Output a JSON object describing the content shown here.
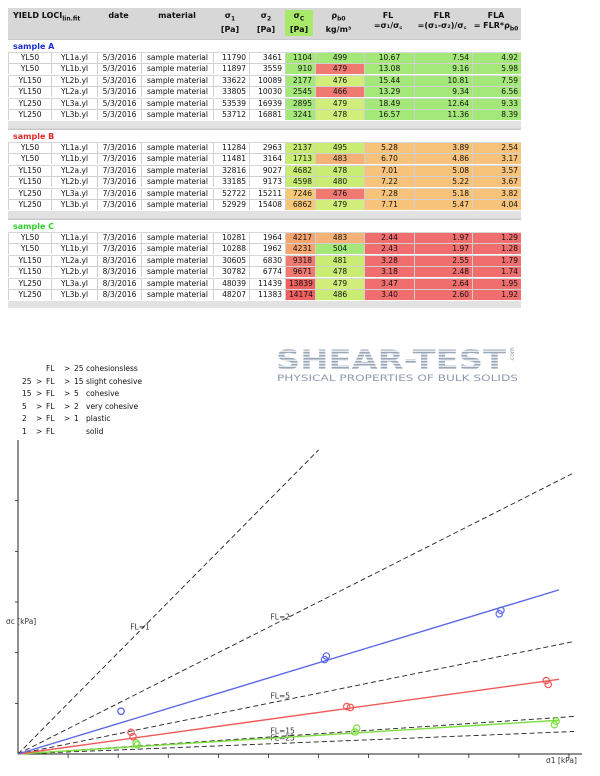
{
  "table": {
    "headers": {
      "yield": "YIELD LOCI",
      "yield_sub": "lin.fit",
      "date": "date",
      "material": "material",
      "s1": "σ",
      "s1_sub": "1",
      "s1_unit": "[Pa]",
      "s2": "σ",
      "s2_sub": "2",
      "s2_unit": "[Pa]",
      "sc": "σ",
      "sc_sub": "C",
      "sc_unit": "[Pa]",
      "rho": "ρ",
      "rho_sub": "b0",
      "rho_unit": "kg/m³",
      "fl": "FL",
      "fl_formula": "=σ₁/σ꜀",
      "flr": "FLR",
      "flr_formula": "=(σ₁-σ₂)/σ꜀",
      "fla": "FLA",
      "fla_formula": "= FLR*ρ",
      "fla_formula_sub": "b0"
    },
    "sections": [
      {
        "title": "sample A",
        "title_color": "#1a2fd0",
        "groups": [
          [
            {
              "name": "YL50",
              "file": "YL1a.yl",
              "date": "5/3/2016",
              "material": "sample material",
              "s1": "11790",
              "s2": "3461",
              "sc": "1104",
              "rho": "499",
              "fl": "10.67",
              "flr": "7.54",
              "fla": "4.92",
              "sc_color": "#a5e87a",
              "rho_color": "#a5e87a",
              "fl_color": "#a5e87a",
              "flr_color": "#a5e87a",
              "fla_color": "#a5e87a"
            },
            {
              "name": "YL50",
              "file": "YL1b.yl",
              "date": "5/3/2016",
              "material": "sample material",
              "s1": "11897",
              "s2": "3559",
              "sc": "910",
              "rho": "479",
              "fl": "13.08",
              "flr": "9.16",
              "fla": "5.98",
              "sc_color": "#a5e87a",
              "rho_color": "#f07a72",
              "fl_color": "#a5e87a",
              "flr_color": "#a5e87a",
              "fla_color": "#a5e87a"
            }
          ],
          [
            {
              "name": "YL150",
              "file": "YL2b.yl",
              "date": "5/3/2016",
              "material": "sample material",
              "s1": "33622",
              "s2": "10089",
              "sc": "2177",
              "rho": "476",
              "fl": "15.44",
              "flr": "10.81",
              "fla": "7.59",
              "sc_color": "#a5e87a",
              "rho_color": "#d2ee7a",
              "fl_color": "#a5e87a",
              "flr_color": "#a5e87a",
              "fla_color": "#a5e87a"
            },
            {
              "name": "YL150",
              "file": "YL2a.yl",
              "date": "5/3/2016",
              "material": "sample material",
              "s1": "33805",
              "s2": "10030",
              "sc": "2545",
              "rho": "466",
              "fl": "13.29",
              "flr": "9.34",
              "fla": "6.56",
              "sc_color": "#a5e87a",
              "rho_color": "#f07a72",
              "fl_color": "#a5e87a",
              "flr_color": "#a5e87a",
              "fla_color": "#a5e87a"
            }
          ],
          [
            {
              "name": "YL250",
              "file": "YL3a.yl",
              "date": "5/3/2016",
              "material": "sample material",
              "s1": "53539",
              "s2": "16939",
              "sc": "2895",
              "rho": "479",
              "fl": "18.49",
              "flr": "12.64",
              "fla": "9.33",
              "sc_color": "#a5e87a",
              "rho_color": "#d2ee7a",
              "fl_color": "#a5e87a",
              "flr_color": "#a5e87a",
              "fla_color": "#a5e87a"
            },
            {
              "name": "YL250",
              "file": "YL3b.yl",
              "date": "5/3/2016",
              "material": "sample material",
              "s1": "53712",
              "s2": "16881",
              "sc": "3241",
              "rho": "478",
              "fl": "16.57",
              "flr": "11.36",
              "fla": "8.39",
              "sc_color": "#a5e87a",
              "rho_color": "#d2ee7a",
              "fl_color": "#a5e87a",
              "flr_color": "#a5e87a",
              "fla_color": "#a5e87a"
            }
          ]
        ]
      },
      {
        "title": "sample B",
        "title_color": "#e02828",
        "groups": [
          [
            {
              "name": "YL50",
              "file": "YL1a.yl",
              "date": "7/3/2016",
              "material": "sample material",
              "s1": "11284",
              "s2": "2963",
              "sc": "2137",
              "rho": "495",
              "fl": "5.28",
              "flr": "3.89",
              "fla": "2.54",
              "sc_color": "#c9ec72",
              "rho_color": "#c9ec72",
              "fl_color": "#f7c27a",
              "flr_color": "#f7c27a",
              "fla_color": "#f7c27a"
            },
            {
              "name": "YL50",
              "file": "YL1b.yl",
              "date": "7/3/2016",
              "material": "sample material",
              "s1": "11481",
              "s2": "3164",
              "sc": "1713",
              "rho": "483",
              "fl": "6.70",
              "flr": "4.86",
              "fla": "3.17",
              "sc_color": "#c9ec72",
              "rho_color": "#f4b276",
              "fl_color": "#f7c27a",
              "flr_color": "#f7c27a",
              "fla_color": "#f7c27a"
            }
          ],
          [
            {
              "name": "YL150",
              "file": "YL2a.yl",
              "date": "7/3/2016",
              "material": "sample material",
              "s1": "32816",
              "s2": "9027",
              "sc": "4682",
              "rho": "478",
              "fl": "7.01",
              "flr": "5.08",
              "fla": "3.57",
              "sc_color": "#c9ec72",
              "rho_color": "#c9ec72",
              "fl_color": "#f7c27a",
              "flr_color": "#f7c27a",
              "fla_color": "#f7c27a"
            },
            {
              "name": "YL150",
              "file": "YL2b.yl",
              "date": "7/3/2016",
              "material": "sample material",
              "s1": "33185",
              "s2": "9173",
              "sc": "4598",
              "rho": "480",
              "fl": "7.22",
              "flr": "5.22",
              "fla": "3.67",
              "sc_color": "#c9ec72",
              "rho_color": "#c9ec72",
              "fl_color": "#f7c27a",
              "flr_color": "#f7c27a",
              "fla_color": "#f7c27a"
            }
          ],
          [
            {
              "name": "YL250",
              "file": "YL3a.yl",
              "date": "7/3/2016",
              "material": "sample material",
              "s1": "52722",
              "s2": "15211",
              "sc": "7246",
              "rho": "476",
              "fl": "7.28",
              "flr": "5.18",
              "fla": "3.82",
              "sc_color": "#f6c878",
              "rho_color": "#f07a72",
              "fl_color": "#f7c27a",
              "flr_color": "#f7c27a",
              "fla_color": "#f7c27a"
            },
            {
              "name": "YL250",
              "file": "YL3b.yl",
              "date": "7/3/2016",
              "material": "sample material",
              "s1": "52929",
              "s2": "15408",
              "sc": "6862",
              "rho": "479",
              "fl": "7.71",
              "flr": "5.47",
              "fla": "4.04",
              "sc_color": "#f6c878",
              "rho_color": "#d2ee7a",
              "fl_color": "#f7c27a",
              "flr_color": "#f7c27a",
              "fla_color": "#f7c27a"
            }
          ]
        ]
      },
      {
        "title": "sample C",
        "title_color": "#2bd02b",
        "groups": [
          [
            {
              "name": "YL50",
              "file": "YL1a.yl",
              "date": "7/3/2016",
              "material": "sample material",
              "s1": "10281",
              "s2": "1964",
              "sc": "4217",
              "rho": "483",
              "fl": "2.44",
              "flr": "1.97",
              "fla": "1.29",
              "sc_color": "#f6a470",
              "rho_color": "#f4b276",
              "fl_color": "#f06e6e",
              "flr_color": "#f06e6e",
              "fla_color": "#f06e6e"
            },
            {
              "name": "YL50",
              "file": "YL1b.yl",
              "date": "7/3/2016",
              "material": "sample material",
              "s1": "10288",
              "s2": "1962",
              "sc": "4231",
              "rho": "504",
              "fl": "2.43",
              "flr": "1.97",
              "fla": "1.28",
              "sc_color": "#f6a470",
              "rho_color": "#a5e87a",
              "fl_color": "#f06e6e",
              "flr_color": "#f06e6e",
              "fla_color": "#f06e6e"
            }
          ],
          [
            {
              "name": "YL150",
              "file": "YL2a.yl",
              "date": "8/3/2016",
              "material": "sample material",
              "s1": "30605",
              "s2": "6830",
              "sc": "9318",
              "rho": "481",
              "fl": "3.28",
              "flr": "2.55",
              "fla": "1.79",
              "sc_color": "#f07a72",
              "rho_color": "#c9ec72",
              "fl_color": "#f06e6e",
              "flr_color": "#f06e6e",
              "fla_color": "#f06e6e"
            },
            {
              "name": "YL150",
              "file": "YL2b.yl",
              "date": "8/3/2016",
              "material": "sample material",
              "s1": "30782",
              "s2": "6774",
              "sc": "9671",
              "rho": "478",
              "fl": "3.18",
              "flr": "2.48",
              "fla": "1.74",
              "sc_color": "#f07a72",
              "rho_color": "#c9ec72",
              "fl_color": "#f06e6e",
              "flr_color": "#f06e6e",
              "fla_color": "#f06e6e"
            }
          ],
          [
            {
              "name": "YL250",
              "file": "YL3a.yl",
              "date": "8/3/2016",
              "material": "sample material",
              "s1": "48039",
              "s2": "11439",
              "sc": "13839",
              "rho": "479",
              "fl": "3.47",
              "flr": "2.64",
              "fla": "1.95",
              "sc_color": "#f06060",
              "rho_color": "#d2ee7a",
              "fl_color": "#f06e6e",
              "flr_color": "#f06e6e",
              "fla_color": "#f06e6e"
            },
            {
              "name": "YL250",
              "file": "YL3b.yl",
              "date": "8/3/2016",
              "material": "sample material",
              "s1": "48207",
              "s2": "11383",
              "sc": "14174",
              "rho": "486",
              "fl": "3.40",
              "flr": "2.60",
              "fla": "1.92",
              "sc_color": "#f06060",
              "rho_color": "#c9ec72",
              "fl_color": "#f06e6e",
              "flr_color": "#f06e6e",
              "fla_color": "#f06e6e"
            }
          ]
        ]
      }
    ]
  },
  "legend": [
    {
      "lo": "",
      "lo_op": "",
      "fl": "FL",
      "hi_op": ">",
      "hi": "25",
      "label": "cohesionsless"
    },
    {
      "lo": "25",
      "lo_op": ">",
      "fl": "FL",
      "hi_op": ">",
      "hi": "15",
      "label": "slight cohesive"
    },
    {
      "lo": "15",
      "lo_op": ">",
      "fl": "FL",
      "hi_op": ">",
      "hi": "5",
      "label": "cohesive"
    },
    {
      "lo": "5",
      "lo_op": ">",
      "fl": "FL",
      "hi_op": ">",
      "hi": "2",
      "label": "very cohesive"
    },
    {
      "lo": "2",
      "lo_op": ">",
      "fl": "FL",
      "hi_op": ">",
      "hi": "1",
      "label": "plastic"
    },
    {
      "lo": "1",
      "lo_op": ">",
      "fl": "FL",
      "hi_op": "",
      "hi": "",
      "label": "solid"
    }
  ],
  "logo": {
    "title": "SHEAR-TEST",
    "domain": ".com",
    "subtitle": "PHYSICAL PROPERTIES OF BULK SOLIDS"
  },
  "chart_data": {
    "type": "scatter",
    "title": "",
    "xlabel": "σ1 [kPa]",
    "ylabel": "σc [kPa]",
    "xlim": [
      0,
      55.5
    ],
    "ylim": [
      0,
      30
    ],
    "grid": false,
    "reference_lines": [
      {
        "label": "FL=1",
        "slope": 1
      },
      {
        "label": "FL=2",
        "slope": 0.5
      },
      {
        "label": "FL=5",
        "slope": 0.2
      },
      {
        "label": "FL=15",
        "slope": 0.0667
      },
      {
        "label": "FL=25",
        "slope": 0.04
      }
    ],
    "series": [
      {
        "name": "sample A",
        "color": "#7ddf3f",
        "x": [
          11.79,
          11.897,
          33.622,
          33.805,
          53.539,
          53.712
        ],
        "y": [
          1.104,
          0.91,
          2.177,
          2.545,
          2.895,
          3.241
        ]
      },
      {
        "name": "sample B",
        "color": "#f05a5a",
        "x": [
          11.284,
          11.481,
          32.816,
          33.185,
          52.722,
          52.929
        ],
        "y": [
          2.137,
          1.713,
          4.682,
          4.598,
          7.246,
          6.862
        ]
      },
      {
        "name": "sample C",
        "color": "#5a6ae8",
        "x": [
          10.281,
          10.288,
          30.605,
          30.782,
          48.039,
          48.207
        ],
        "y": [
          4.217,
          4.231,
          9.318,
          9.671,
          13.839,
          14.174
        ]
      }
    ]
  }
}
